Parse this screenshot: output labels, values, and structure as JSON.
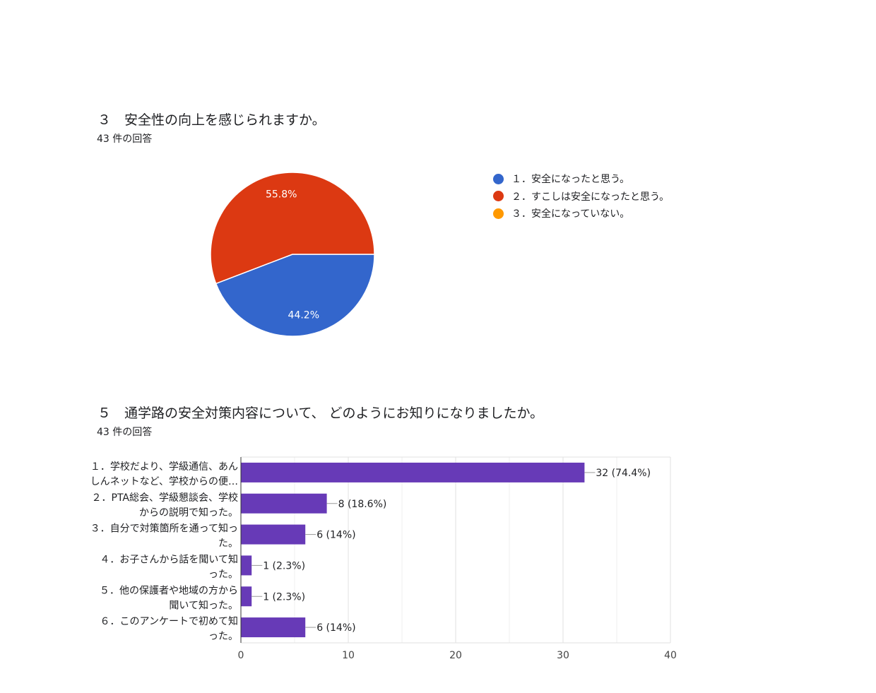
{
  "charts": [
    {
      "title": "３　安全性の向上を感じられますか。",
      "response_count": "43 件の回答"
    },
    {
      "title": "５　通学路の安全対策内容について、 どのようにお知りになりましたか。",
      "response_count": "43 件の回答"
    }
  ],
  "chart_data": [
    {
      "type": "pie",
      "title": "３　安全性の向上を感じられますか。",
      "categories": [
        "１．安全になったと思う。",
        "２．すこしは安全になったと思う。",
        "３．安全になっていない。"
      ],
      "values": [
        19,
        24,
        0
      ],
      "percent_labels": [
        "44.2%",
        "55.8%",
        ""
      ],
      "colors": [
        "#3366cc",
        "#dc3912",
        "#ff9900"
      ],
      "legend_position": "right"
    },
    {
      "type": "bar",
      "orientation": "horizontal",
      "title": "５　通学路の安全対策内容について、 どのようにお知りになりましたか。",
      "categories": [
        [
          "１．学校だより、学級通信、あん",
          "しんネットなど、学校からの便…"
        ],
        [
          "２．PTA総会、学級懇談会、学校",
          "からの説明で知った。"
        ],
        [
          "３．自分で対策箇所を通って知っ",
          "た。"
        ],
        [
          "４．お子さんから話を聞いて知",
          "った。"
        ],
        [
          "５．他の保護者や地域の方から",
          "聞いて知った。"
        ],
        [
          "６．このアンケートで初めて知",
          "った。"
        ]
      ],
      "values": [
        32,
        8,
        6,
        1,
        1,
        6
      ],
      "data_labels": [
        "32 (74.4%)",
        "8 (18.6%)",
        "6 (14%)",
        "1 (2.3%)",
        "1 (2.3%)",
        "6 (14%)"
      ],
      "xlim": [
        0,
        40
      ],
      "xticks": [
        0,
        10,
        20,
        30,
        40
      ],
      "color": "#673ab7",
      "grid": true
    }
  ]
}
